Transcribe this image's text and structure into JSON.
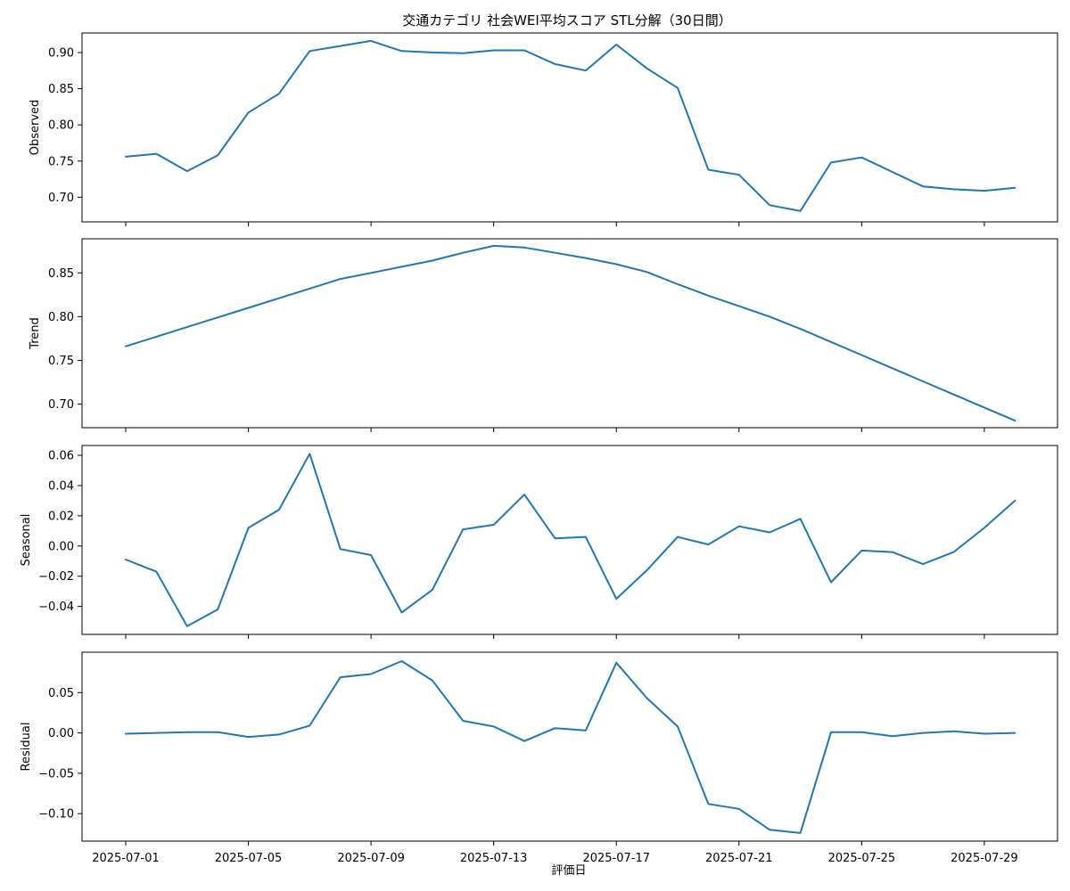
{
  "chart_data": {
    "type": "line",
    "title": "交通カテゴリ 社会WEI平均スコア STL分解（30日間）",
    "xlabel": "評価日",
    "x": [
      "2025-07-01",
      "2025-07-02",
      "2025-07-03",
      "2025-07-04",
      "2025-07-05",
      "2025-07-06",
      "2025-07-07",
      "2025-07-08",
      "2025-07-09",
      "2025-07-10",
      "2025-07-11",
      "2025-07-12",
      "2025-07-13",
      "2025-07-14",
      "2025-07-15",
      "2025-07-16",
      "2025-07-17",
      "2025-07-18",
      "2025-07-19",
      "2025-07-20",
      "2025-07-21",
      "2025-07-22",
      "2025-07-23",
      "2025-07-24",
      "2025-07-25",
      "2025-07-26",
      "2025-07-27",
      "2025-07-28",
      "2025-07-29",
      "2025-07-30"
    ],
    "x_ticks": [
      "2025-07-01",
      "2025-07-05",
      "2025-07-09",
      "2025-07-13",
      "2025-07-17",
      "2025-07-21",
      "2025-07-25",
      "2025-07-29"
    ],
    "grid": false,
    "panels": [
      {
        "ylabel": "Observed",
        "ylim": [
          0.666,
          0.927
        ],
        "yticks": [
          0.7,
          0.75,
          0.8,
          0.85,
          0.9
        ],
        "ytick_labels": [
          "0.70",
          "0.75",
          "0.80",
          "0.85",
          "0.90"
        ],
        "values": [
          0.756,
          0.76,
          0.736,
          0.758,
          0.817,
          0.843,
          0.902,
          0.909,
          0.916,
          0.902,
          0.9,
          0.899,
          0.903,
          0.903,
          0.884,
          0.875,
          0.911,
          0.878,
          0.851,
          0.738,
          0.731,
          0.689,
          0.681,
          0.748,
          0.755,
          0.735,
          0.715,
          0.711,
          0.709,
          0.713
        ]
      },
      {
        "ylabel": "Trend",
        "ylim": [
          0.673,
          0.889
        ],
        "yticks": [
          0.7,
          0.75,
          0.8,
          0.85
        ],
        "ytick_labels": [
          "0.70",
          "0.75",
          "0.80",
          "0.85"
        ],
        "values": [
          0.766,
          0.777,
          0.788,
          0.799,
          0.81,
          0.821,
          0.832,
          0.843,
          0.85,
          0.857,
          0.864,
          0.873,
          0.881,
          0.879,
          0.873,
          0.867,
          0.86,
          0.851,
          0.837,
          0.824,
          0.812,
          0.8,
          0.786,
          0.771,
          0.756,
          0.741,
          0.726,
          0.711,
          0.696,
          0.681
        ]
      },
      {
        "ylabel": "Seasonal",
        "ylim": [
          -0.0585,
          0.0665
        ],
        "yticks": [
          -0.04,
          -0.02,
          0.0,
          0.02,
          0.04,
          0.06
        ],
        "ytick_labels": [
          "−0.04",
          "−0.02",
          "0.00",
          "0.02",
          "0.04",
          "0.06"
        ],
        "values": [
          -0.009,
          -0.017,
          -0.053,
          -0.042,
          0.012,
          0.024,
          0.061,
          -0.002,
          -0.006,
          -0.044,
          -0.029,
          0.011,
          0.014,
          0.034,
          0.005,
          0.006,
          -0.035,
          -0.016,
          0.006,
          0.001,
          0.013,
          0.009,
          0.018,
          -0.024,
          -0.003,
          -0.004,
          -0.012,
          -0.004,
          0.012,
          0.03
        ]
      },
      {
        "ylabel": "Residual",
        "ylim": [
          -0.134,
          0.1
        ],
        "yticks": [
          -0.1,
          -0.05,
          0.0,
          0.05
        ],
        "ytick_labels": [
          "−0.10",
          "−0.05",
          "0.00",
          "0.05"
        ],
        "values": [
          -0.001,
          0.0,
          0.001,
          0.001,
          -0.005,
          -0.002,
          0.009,
          0.069,
          0.073,
          0.089,
          0.065,
          0.015,
          0.008,
          -0.01,
          0.006,
          0.003,
          0.087,
          0.043,
          0.008,
          -0.088,
          -0.094,
          -0.12,
          -0.124,
          0.001,
          0.001,
          -0.004,
          0.0,
          0.002,
          -0.001,
          0.0
        ]
      }
    ]
  },
  "colors": {
    "line": "#1f77b4",
    "axis": "#000000",
    "background": "#ffffff"
  }
}
